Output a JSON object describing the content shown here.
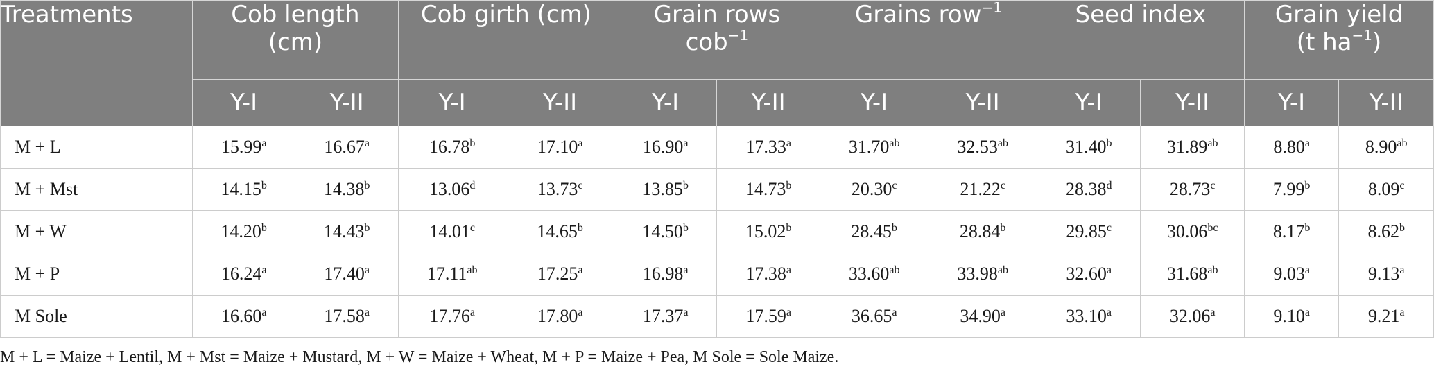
{
  "header": {
    "treatments": "Treatments",
    "cob_length": [
      "Cob length",
      "(cm)"
    ],
    "cob_girth": "Cob girth (cm)",
    "grain_rows": [
      "Grain rows",
      "cob",
      "−1"
    ],
    "grains_row": [
      "Grains row",
      "−1"
    ],
    "seed_index": "Seed index",
    "grain_yield": [
      "Grain yield",
      "(t ha",
      "−1",
      ")"
    ],
    "years": [
      "Y-I",
      "Y-II",
      "Y-I",
      "Y-II",
      "Y-I",
      "Y-II",
      "Y-I",
      "Y-II",
      "Y-I",
      "Y-II",
      "Y-I",
      "Y-II"
    ]
  },
  "rows": [
    {
      "treatment": "M + L",
      "cells": [
        {
          "v": "15.99",
          "s": "a"
        },
        {
          "v": "16.67",
          "s": "a"
        },
        {
          "v": "16.78",
          "s": "b"
        },
        {
          "v": "17.10",
          "s": "a"
        },
        {
          "v": "16.90",
          "s": "a"
        },
        {
          "v": "17.33",
          "s": "a"
        },
        {
          "v": "31.70",
          "s": "ab"
        },
        {
          "v": "32.53",
          "s": "ab"
        },
        {
          "v": "31.40",
          "s": "b"
        },
        {
          "v": "31.89",
          "s": "ab"
        },
        {
          "v": "8.80",
          "s": "a"
        },
        {
          "v": "8.90",
          "s": "ab"
        }
      ]
    },
    {
      "treatment": "M + Mst",
      "cells": [
        {
          "v": "14.15",
          "s": "b"
        },
        {
          "v": "14.38",
          "s": "b"
        },
        {
          "v": "13.06",
          "s": "d"
        },
        {
          "v": "13.73",
          "s": "c"
        },
        {
          "v": "13.85",
          "s": "b"
        },
        {
          "v": "14.73",
          "s": "b"
        },
        {
          "v": "20.30",
          "s": "c"
        },
        {
          "v": "21.22",
          "s": "c"
        },
        {
          "v": "28.38",
          "s": "d"
        },
        {
          "v": "28.73",
          "s": "c"
        },
        {
          "v": "7.99",
          "s": "b"
        },
        {
          "v": "8.09",
          "s": "c"
        }
      ]
    },
    {
      "treatment": "M + W",
      "cells": [
        {
          "v": "14.20",
          "s": "b"
        },
        {
          "v": "14.43",
          "s": "b"
        },
        {
          "v": "14.01",
          "s": "c"
        },
        {
          "v": "14.65",
          "s": "b"
        },
        {
          "v": "14.50",
          "s": "b"
        },
        {
          "v": "15.02",
          "s": "b"
        },
        {
          "v": "28.45",
          "s": "b"
        },
        {
          "v": "28.84",
          "s": "b"
        },
        {
          "v": "29.85",
          "s": "c"
        },
        {
          "v": "30.06",
          "s": "bc"
        },
        {
          "v": "8.17",
          "s": "b"
        },
        {
          "v": "8.62",
          "s": "b"
        }
      ]
    },
    {
      "treatment": "M + P",
      "cells": [
        {
          "v": "16.24",
          "s": "a"
        },
        {
          "v": "17.40",
          "s": "a"
        },
        {
          "v": "17.11",
          "s": "ab"
        },
        {
          "v": "17.25",
          "s": "a"
        },
        {
          "v": "16.98",
          "s": "a"
        },
        {
          "v": "17.38",
          "s": "a"
        },
        {
          "v": "33.60",
          "s": "ab"
        },
        {
          "v": "33.98",
          "s": "ab"
        },
        {
          "v": "32.60",
          "s": "a"
        },
        {
          "v": "31.68",
          "s": "ab"
        },
        {
          "v": "9.03",
          "s": "a"
        },
        {
          "v": "9.13",
          "s": "a"
        }
      ]
    },
    {
      "treatment": "M Sole",
      "cells": [
        {
          "v": "16.60",
          "s": "a"
        },
        {
          "v": "17.58",
          "s": "a"
        },
        {
          "v": "17.76",
          "s": "a"
        },
        {
          "v": "17.80",
          "s": "a"
        },
        {
          "v": "17.37",
          "s": "a"
        },
        {
          "v": "17.59",
          "s": "a"
        },
        {
          "v": "36.65",
          "s": "a"
        },
        {
          "v": "34.90",
          "s": "a"
        },
        {
          "v": "33.10",
          "s": "a"
        },
        {
          "v": "32.06",
          "s": "a"
        },
        {
          "v": "9.10",
          "s": "a"
        },
        {
          "v": "9.21",
          "s": "a"
        }
      ]
    }
  ],
  "footnote": "M + L = Maize + Lentil, M + Mst = Maize + Mustard, M + W = Maize + Wheat, M + P = Maize + Pea, M Sole = Sole Maize.",
  "colors": {
    "header_bg": "#7f7f7f",
    "header_text": "#ffffff"
  }
}
